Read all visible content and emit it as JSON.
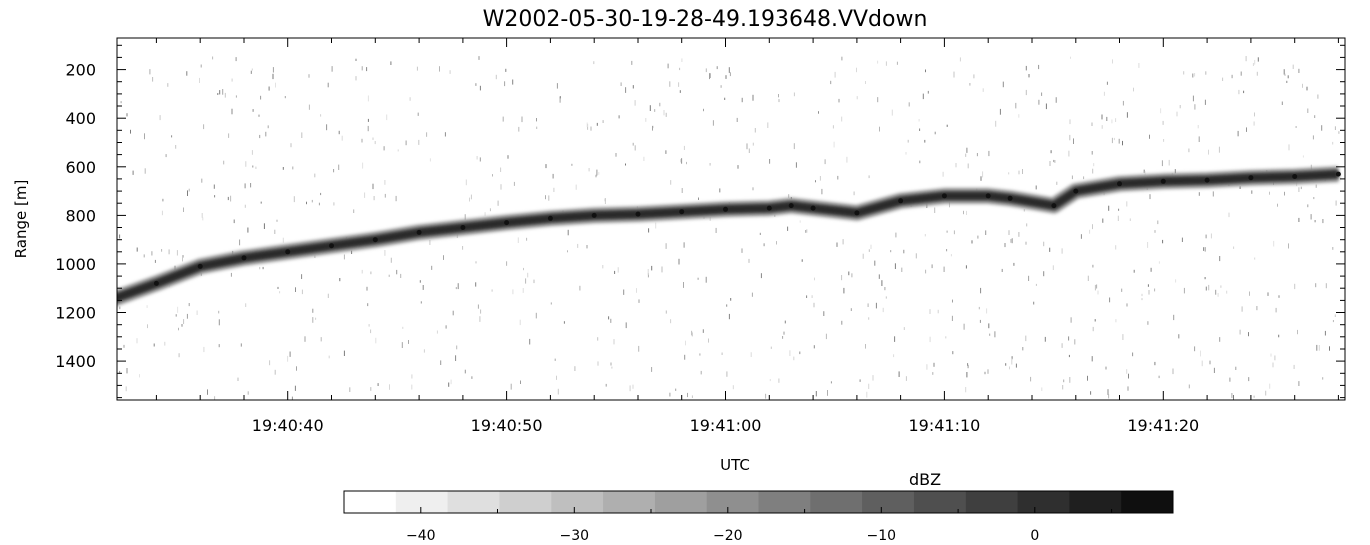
{
  "chart_data": {
    "type": "heatmap",
    "title": "W2002-05-30-19-28-49.193648.VVdown",
    "xlabel": "UTC",
    "ylabel": "Range [m]",
    "x_range": [
      "19:40:32.2",
      "19:41:28.3"
    ],
    "x_ticks": [
      "19:40:40",
      "19:40:50",
      "19:41:00",
      "19:41:10",
      "19:41:20"
    ],
    "ylim": [
      1560,
      70
    ],
    "y_ticks": [
      200,
      400,
      600,
      800,
      1000,
      1200,
      1400
    ],
    "grid": false,
    "colormap": "grayscale (white = low, black = high)",
    "series": [
      {
        "x": [
          "19:40:32",
          "19:40:34",
          "19:40:36",
          "19:40:38",
          "19:40:40",
          "19:40:42",
          "19:40:44",
          "19:40:46",
          "19:40:48",
          "19:40:50",
          "19:40:52",
          "19:40:54",
          "19:40:56",
          "19:40:58",
          "19:41:00",
          "19:41:02",
          "19:41:03",
          "19:41:04",
          "19:41:06",
          "19:41:08",
          "19:41:10",
          "19:41:12",
          "19:41:13",
          "19:41:15",
          "19:41:16",
          "19:41:18",
          "19:41:20",
          "19:41:22",
          "19:41:24",
          "19:41:26",
          "19:41:28"
        ],
        "y": [
          1145,
          1080,
          1010,
          975,
          950,
          925,
          900,
          870,
          850,
          830,
          812,
          800,
          795,
          785,
          775,
          770,
          760,
          770,
          790,
          740,
          720,
          720,
          730,
          760,
          700,
          670,
          660,
          655,
          645,
          640,
          630
        ]
      }
    ]
  },
  "colorbar": {
    "label": "dBZ",
    "ticks": [
      -40,
      -30,
      -20,
      -10,
      0
    ],
    "min": -45,
    "max": 9,
    "levels": [
      "#ffffff",
      "#efefef",
      "#dfdfdf",
      "#cfcfcf",
      "#bfbfbf",
      "#afafaf",
      "#9f9f9f",
      "#8f8f8f",
      "#7f7f7f",
      "#6f6f6f",
      "#5f5f5f",
      "#4f4f4f",
      "#3f3f3f",
      "#2f2f2f",
      "#1f1f1f",
      "#0f0f0f"
    ]
  }
}
